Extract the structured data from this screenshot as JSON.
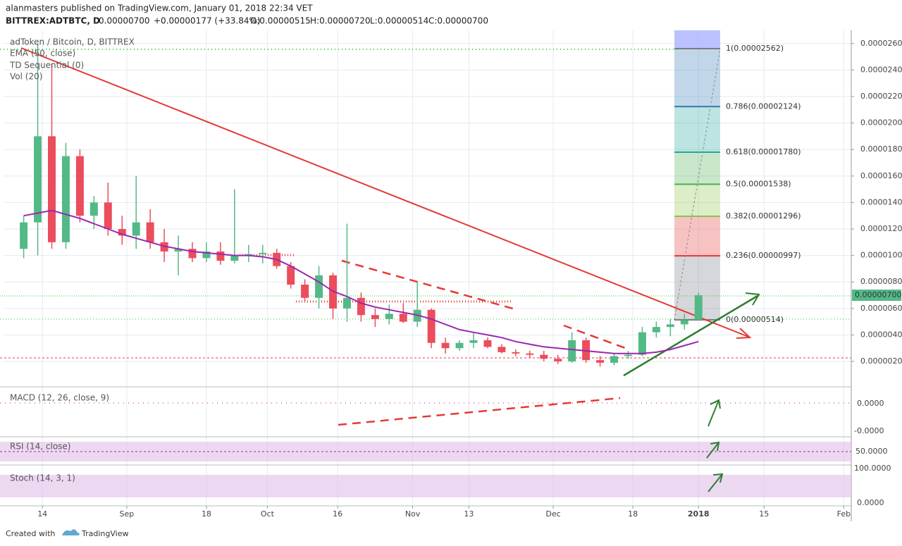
{
  "header": {
    "byline": "alanmasters published on TradingView.com, January 01, 2018 22:34 VET",
    "symbol": "BITTREX:ADTBTC, D",
    "last": "0.00000700",
    "change": "+0.00000177 (+33.84%)",
    "open": "O:0.00000515",
    "high": "H:0.00000720",
    "low": "L:0.00000514",
    "close": "C:0.00000700"
  },
  "chart_data": {
    "type": "candlestick",
    "title": "adToken / Bitcoin, D, BITTREX",
    "indicators": [
      "TD Sequential (0)",
      "Vol (20)"
    ],
    "x": [
      2,
      5,
      8,
      11,
      14,
      17,
      20,
      23,
      26,
      29,
      32,
      35,
      38,
      41,
      44,
      47,
      50,
      53,
      56,
      59,
      62,
      65,
      68,
      71,
      74,
      77,
      80,
      83,
      86,
      89,
      92,
      95,
      98,
      101,
      104,
      107,
      110,
      113,
      116,
      119,
      122,
      125,
      128,
      131,
      134,
      137,
      140,
      143,
      146
    ],
    "open": [
      1.05e-05,
      1.25e-05,
      1.9e-05,
      1.1e-05,
      1.75e-05,
      1.3e-05,
      1.4e-05,
      1.2e-05,
      1.15e-05,
      1.25e-05,
      1.1e-05,
      1.03e-05,
      1.05e-05,
      9.8e-06,
      1.03e-05,
      9.6e-06,
      1e-05,
      1.01e-05,
      1.02e-05,
      9.2e-06,
      7.8e-06,
      6.8e-06,
      8.5e-06,
      6e-06,
      6.8e-06,
      5.5e-06,
      5.2e-06,
      5.6e-06,
      5e-06,
      5.9e-06,
      3.4e-06,
      3e-06,
      3.4e-06,
      3.6e-06,
      3.1e-06,
      2.7e-06,
      2.6e-06,
      2.5e-06,
      2.2e-06,
      2e-06,
      3.6e-06,
      2.1e-06,
      1.9e-06,
      2.4e-06,
      2.5e-06,
      4.2e-06,
      4.6e-06,
      4.8e-06,
      5.15e-06
    ],
    "high": [
      1.3e-05,
      2.6e-05,
      2.45e-05,
      1.85e-05,
      1.8e-05,
      1.45e-05,
      1.55e-05,
      1.3e-05,
      1.6e-05,
      1.35e-05,
      1.2e-05,
      1.15e-05,
      1.1e-05,
      1.1e-05,
      1.1e-05,
      1.5e-05,
      1.08e-05,
      1.08e-05,
      1.05e-05,
      9.5e-06,
      8.2e-06,
      9.2e-06,
      8.7e-06,
      1.24e-05,
      7.2e-06,
      6e-06,
      6.3e-06,
      6.4e-06,
      8e-06,
      6e-06,
      3.8e-06,
      3.6e-06,
      4.2e-06,
      3.8e-06,
      3.3e-06,
      2.9e-06,
      2.8e-06,
      2.8e-06,
      2.5e-06,
      4.2e-06,
      3.8e-06,
      2.4e-06,
      2.6e-06,
      2.8e-06,
      4.6e-06,
      5e-06,
      5.2e-06,
      5.6e-06,
      7.2e-06
    ],
    "low": [
      9.8e-06,
      1e-05,
      1.05e-05,
      1.05e-05,
      1.25e-05,
      1.2e-05,
      1.15e-05,
      1.08e-05,
      1.05e-05,
      1.05e-05,
      9.5e-06,
      8.5e-06,
      9.5e-06,
      9.5e-06,
      9.3e-06,
      9.4e-06,
      9.5e-06,
      9.4e-06,
      9e-06,
      7.5e-06,
      6.5e-06,
      6e-06,
      5.2e-06,
      5e-06,
      5e-06,
      4.6e-06,
      4.8e-06,
      4.9e-06,
      4.6e-06,
      3e-06,
      2.6e-06,
      2.8e-06,
      3e-06,
      3e-06,
      2.6e-06,
      2.4e-06,
      2.3e-06,
      2e-06,
      1.8e-06,
      1.9e-06,
      1.9e-06,
      1.6e-06,
      1.7e-06,
      2.2e-06,
      2.4e-06,
      3.8e-06,
      3.9e-06,
      4.4e-06,
      5.14e-06
    ],
    "close": [
      1.25e-05,
      1.9e-05,
      1.1e-05,
      1.75e-05,
      1.3e-05,
      1.4e-05,
      1.2e-05,
      1.15e-05,
      1.25e-05,
      1.1e-05,
      1.03e-05,
      1.05e-05,
      9.8e-06,
      1.03e-05,
      9.6e-06,
      1e-05,
      1.01e-05,
      1.02e-05,
      9.2e-06,
      7.8e-06,
      6.8e-06,
      8.5e-06,
      6e-06,
      6.8e-06,
      5.5e-06,
      5.2e-06,
      5.6e-06,
      5e-06,
      5.9e-06,
      3.4e-06,
      3e-06,
      3.4e-06,
      3.6e-06,
      3.1e-06,
      2.7e-06,
      2.6e-06,
      2.5e-06,
      2.2e-06,
      2e-06,
      3.6e-06,
      2.1e-06,
      1.9e-06,
      2.4e-06,
      2.5e-06,
      4.2e-06,
      4.6e-06,
      4.8e-06,
      5.1e-06,
      7e-06
    ],
    "up_color": "#53b987",
    "down_color": "#eb4d5c",
    "series": [
      {
        "name": "EMA (50, close)",
        "color": "#9c27b0",
        "values": [
          1.3e-05,
          1.32e-05,
          1.34e-05,
          1.31e-05,
          1.28e-05,
          1.24e-05,
          1.2e-05,
          1.16e-05,
          1.13e-05,
          1.1e-05,
          1.07e-05,
          1.05e-05,
          1.03e-05,
          1.02e-05,
          1.01e-05,
          1e-05,
          1e-05,
          9.9e-06,
          9.7e-06,
          9.2e-06,
          8.6e-06,
          8e-06,
          7.3e-06,
          6.9e-06,
          6.4e-06,
          6.1e-06,
          5.9e-06,
          5.7e-06,
          5.5e-06,
          5.2e-06,
          4.8e-06,
          4.4e-06,
          4.2e-06,
          4e-06,
          3.8e-06,
          3.5e-06,
          3.3e-06,
          3.1e-06,
          3e-06,
          2.9e-06,
          2.8e-06,
          2.7e-06,
          2.6e-06,
          2.6e-06,
          2.6e-06,
          2.7e-06,
          2.9e-06,
          3.2e-06,
          3.5e-06
        ]
      }
    ],
    "xlim": [
      -2.3,
      178.6
    ],
    "xticks": [
      {
        "value": 6,
        "label": "14"
      },
      {
        "value": 24,
        "label": "Sep"
      },
      {
        "value": 41,
        "label": "18"
      },
      {
        "value": 54,
        "label": "Oct"
      },
      {
        "value": 69,
        "label": "16"
      },
      {
        "value": 85,
        "label": "Nov"
      },
      {
        "value": 97,
        "label": "13"
      },
      {
        "value": 115,
        "label": "Dec"
      },
      {
        "value": 132,
        "label": "18"
      },
      {
        "value": 146,
        "label": "2018"
      },
      {
        "value": 160,
        "label": "15"
      },
      {
        "value": 177,
        "label": "Feb"
      }
    ],
    "ylim": [
      1.4e-07,
      2.7e-05
    ],
    "yticks": [
      {
        "value": 2e-06,
        "label": "0.00000200"
      },
      {
        "value": 4e-06,
        "label": "0.00000400"
      },
      {
        "value": 6e-06,
        "label": "0.00000600"
      },
      {
        "value": 8e-06,
        "label": "0.00000800"
      },
      {
        "value": 1e-05,
        "label": "0.00001000"
      },
      {
        "value": 1.2e-05,
        "label": "0.00001200"
      },
      {
        "value": 1.4e-05,
        "label": "0.00001400"
      },
      {
        "value": 1.6e-05,
        "label": "0.00001600"
      },
      {
        "value": 1.8e-05,
        "label": "0.00001800"
      },
      {
        "value": 2e-05,
        "label": "0.00002000"
      },
      {
        "value": 2.2e-05,
        "label": "0.00002200"
      },
      {
        "value": 2.4e-05,
        "label": "0.00002400"
      },
      {
        "value": 2.6e-05,
        "label": "0.00002600"
      }
    ],
    "current_price": {
      "value": 7e-06,
      "label": "0.00000700"
    },
    "fib_levels": [
      {
        "value": 2.562e-05,
        "label": "1(0.00002562)",
        "color": "#787b86"
      },
      {
        "value": 2.124e-05,
        "label": "0.786(0.00002124)",
        "color": "#3179b5"
      },
      {
        "value": 1.78e-05,
        "label": "0.618(0.00001780)",
        "color": "#26a69a"
      },
      {
        "value": 1.538e-05,
        "label": "0.5(0.00001538)",
        "color": "#4caf50"
      },
      {
        "value": 1.296e-05,
        "label": "0.382(0.00001296)",
        "color": "#8bc34a"
      },
      {
        "value": 9.97e-06,
        "label": "0.236(0.00000997)",
        "color": "#e53935"
      },
      {
        "value": 5.14e-06,
        "label": "0(0.00000514)",
        "color": "#787b86"
      }
    ],
    "grid": true
  },
  "panes": {
    "macd": {
      "label": "MACD (12, 26, close, 9)",
      "ticks": [
        "0.0000",
        "-0.0000"
      ]
    },
    "rsi": {
      "label": "RSI (14, close)",
      "ticks": [
        "50.0000"
      ]
    },
    "stoch": {
      "label": "Stoch (14, 3, 1)",
      "ticks": [
        "100.0000",
        "0.0000"
      ]
    }
  },
  "footer": {
    "created": "Created with",
    "brand": "TradingView"
  }
}
